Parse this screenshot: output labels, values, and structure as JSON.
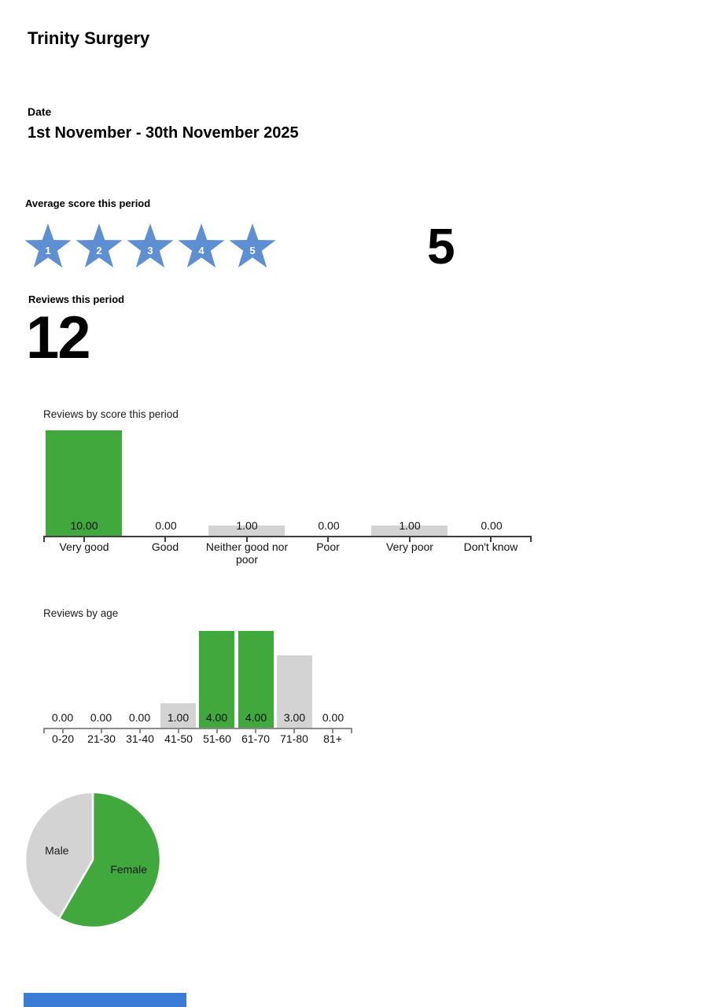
{
  "page": {
    "title": "Trinity Surgery"
  },
  "date": {
    "label": "Date",
    "value": "1st November - 30th November 2025"
  },
  "average_score": {
    "label": "Average score this period",
    "value": "5",
    "stars": [
      "1",
      "2",
      "3",
      "4",
      "5"
    ],
    "star_color": "#5d8fd2"
  },
  "reviews": {
    "label": "Reviews this period",
    "value": "12"
  },
  "chart_data": [
    {
      "type": "bar",
      "title": "Reviews by score this period",
      "categories": [
        "Very good",
        "Good",
        "Neither good nor poor",
        "Poor",
        "Very poor",
        "Don't know"
      ],
      "values": [
        10,
        0,
        1,
        0,
        1,
        0
      ],
      "value_labels": [
        "10.00",
        "0.00",
        "1.00",
        "0.00",
        "1.00",
        "0.00"
      ],
      "bar_colors": [
        "#41a83e",
        "#d3d3d3",
        "#d3d3d3",
        "#d3d3d3",
        "#d3d3d3",
        "#d3d3d3"
      ],
      "xlabel": "",
      "ylabel": "",
      "ylim": [
        0,
        10
      ],
      "grid": false,
      "legend": false,
      "value_label_position": "above-axis"
    },
    {
      "type": "bar",
      "title": "Reviews by age",
      "categories": [
        "0-20",
        "21-30",
        "31-40",
        "41-50",
        "51-60",
        "61-70",
        "71-80",
        "81+"
      ],
      "values": [
        0,
        0,
        0,
        1,
        4,
        4,
        3,
        0
      ],
      "value_labels": [
        "0.00",
        "0.00",
        "0.00",
        "1.00",
        "4.00",
        "4.00",
        "3.00",
        "0.00"
      ],
      "bar_colors": [
        "#d3d3d3",
        "#d3d3d3",
        "#d3d3d3",
        "#d3d3d3",
        "#41a83e",
        "#41a83e",
        "#d3d3d3",
        "#d3d3d3"
      ],
      "xlabel": "",
      "ylabel": "",
      "ylim": [
        0,
        4
      ],
      "grid": false,
      "legend": false,
      "value_label_position": "above-axis"
    },
    {
      "type": "pie",
      "title": "",
      "slices": [
        {
          "label": "Female",
          "percent": 58.33,
          "color": "#41a83e"
        },
        {
          "label": "Male",
          "percent": 41.67,
          "color": "#d3d3d3"
        }
      ],
      "start_angle": "top",
      "direction": "clockwise",
      "labels_inside": true
    }
  ],
  "colors": {
    "bar_green": "#41a83e",
    "bar_gray": "#d3d3d3",
    "score_axis": "#3f3f3f",
    "age_axis": "#8a8a8a",
    "star_blue": "#5d8fd2",
    "footer_accent": "#3a7bd5"
  }
}
